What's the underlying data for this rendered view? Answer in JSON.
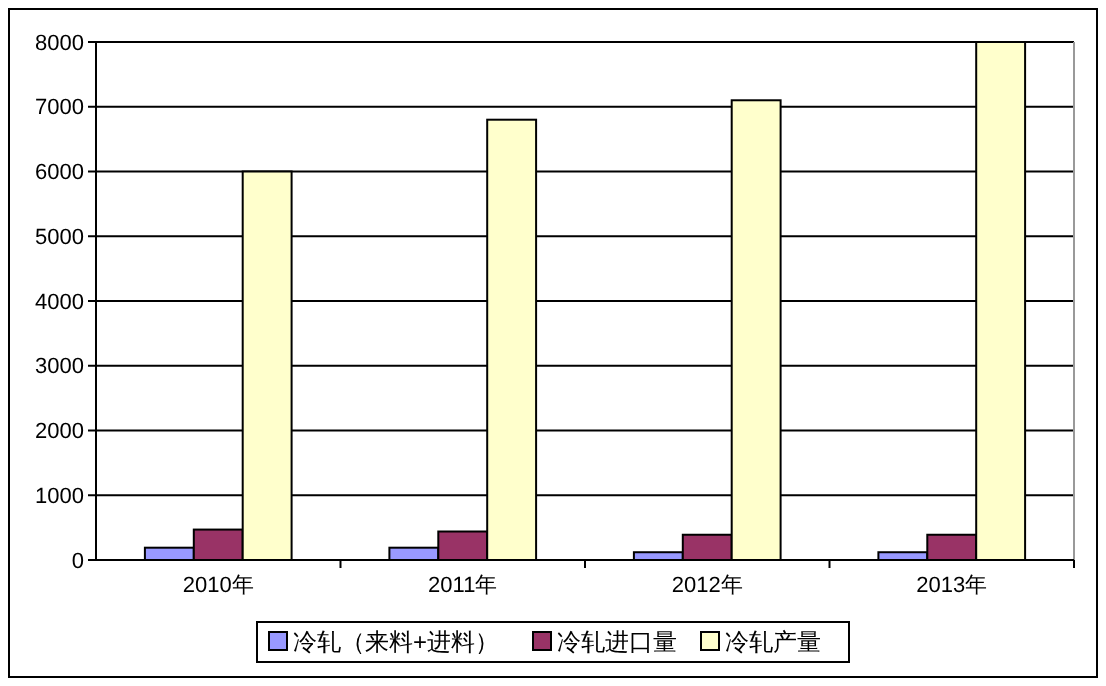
{
  "chart_data": {
    "type": "bar",
    "categories": [
      "2010年",
      "2011年",
      "2012年",
      "2013年"
    ],
    "series": [
      {
        "name": "冷轧（来料+进料）",
        "color": "#9999ff",
        "values": [
          190,
          190,
          120,
          120
        ]
      },
      {
        "name": "冷轧进口量",
        "color": "#993366",
        "values": [
          470,
          440,
          390,
          390
        ]
      },
      {
        "name": "冷轧产量",
        "color": "#ffffcc",
        "values": [
          6000,
          6800,
          7100,
          8000
        ]
      }
    ],
    "ylim": [
      0,
      8000
    ],
    "yticks": [
      0,
      1000,
      2000,
      3000,
      4000,
      5000,
      6000,
      7000,
      8000
    ],
    "grid": "y",
    "legend": "bottom"
  }
}
